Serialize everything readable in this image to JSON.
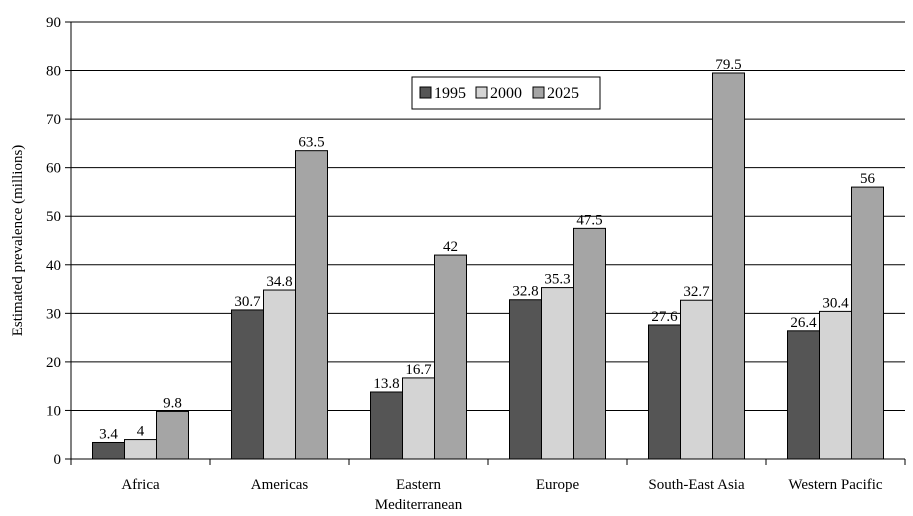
{
  "chart_data": {
    "type": "bar",
    "ylabel": "Estimated prevalence (millions)",
    "xlabel": "",
    "ylim": [
      0,
      90
    ],
    "yticks": [
      0,
      10,
      20,
      30,
      40,
      50,
      60,
      70,
      80,
      90
    ],
    "grid": true,
    "legend_position": "top-center",
    "categories": [
      [
        "Africa"
      ],
      [
        "Americas"
      ],
      [
        "Eastern",
        "Mediterranean"
      ],
      [
        "Europe"
      ],
      [
        "South-East Asia"
      ],
      [
        "Western Pacific"
      ]
    ],
    "series": [
      {
        "name": "1995",
        "color": "#555555",
        "values": [
          3.4,
          30.7,
          13.8,
          32.8,
          27.6,
          26.4
        ],
        "labels": [
          "3.4",
          "30.7",
          "13.8",
          "32.8",
          "27.6",
          "26.4"
        ]
      },
      {
        "name": "2000",
        "color": "#d4d4d4",
        "values": [
          4,
          34.8,
          16.7,
          35.3,
          32.7,
          30.4
        ],
        "labels": [
          "4",
          "34.8",
          "16.7",
          "35.3",
          "32.7",
          "30.4"
        ]
      },
      {
        "name": "2025",
        "color": "#a5a5a5",
        "values": [
          9.8,
          63.5,
          42,
          47.5,
          79.5,
          56
        ],
        "labels": [
          "9.8",
          "63.5",
          "42",
          "47.5",
          "79.5",
          "56"
        ]
      }
    ]
  }
}
